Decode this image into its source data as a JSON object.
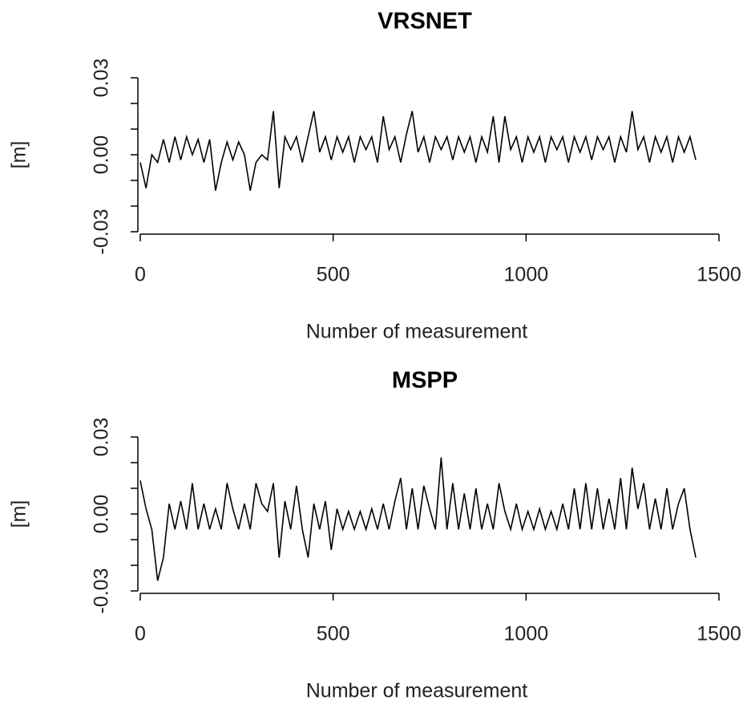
{
  "chart_data": [
    {
      "type": "line",
      "title": "VRSNET",
      "xlabel": "Number of measurement",
      "ylabel": "[m]",
      "color": "#000000",
      "x": [
        0,
        15,
        30,
        45,
        60,
        75,
        90,
        105,
        120,
        135,
        150,
        165,
        180,
        195,
        210,
        225,
        240,
        255,
        270,
        285,
        300,
        315,
        330,
        345,
        360,
        375,
        390,
        405,
        420,
        435,
        450,
        465,
        480,
        495,
        510,
        525,
        540,
        555,
        570,
        585,
        600,
        615,
        630,
        645,
        660,
        675,
        690,
        705,
        720,
        735,
        750,
        765,
        780,
        795,
        810,
        825,
        840,
        855,
        870,
        885,
        900,
        915,
        930,
        945,
        960,
        975,
        990,
        1005,
        1020,
        1035,
        1050,
        1065,
        1080,
        1095,
        1110,
        1125,
        1140,
        1155,
        1170,
        1185,
        1200,
        1215,
        1230,
        1245,
        1260,
        1275,
        1290,
        1305,
        1320,
        1335,
        1350,
        1365,
        1380,
        1395,
        1410,
        1425,
        1440
      ],
      "values": [
        -0.003,
        -0.013,
        0,
        -0.003,
        0.006,
        -0.003,
        0.007,
        -0.002,
        0.007,
        0,
        0.006,
        -0.003,
        0.006,
        -0.014,
        -0.003,
        0.005,
        -0.002,
        0.005,
        0,
        -0.014,
        -0.003,
        0,
        -0.002,
        0.017,
        -0.013,
        0.007,
        0.002,
        0.007,
        -0.003,
        0.007,
        0.017,
        0.001,
        0.007,
        -0.002,
        0.007,
        0.001,
        0.007,
        -0.003,
        0.007,
        0.002,
        0.007,
        -0.003,
        0.015,
        0.002,
        0.007,
        -0.003,
        0.008,
        0.017,
        0.001,
        0.007,
        -0.003,
        0.007,
        0.002,
        0.007,
        -0.002,
        0.007,
        0.001,
        0.007,
        -0.003,
        0.007,
        0.001,
        0.015,
        -0.003,
        0.015,
        0.002,
        0.007,
        -0.003,
        0.007,
        0.001,
        0.007,
        -0.003,
        0.007,
        0.002,
        0.007,
        -0.003,
        0.007,
        0.001,
        0.007,
        -0.002,
        0.007,
        0.002,
        0.007,
        -0.003,
        0.007,
        0.001,
        0.017,
        0.002,
        0.007,
        -0.003,
        0.007,
        0.001,
        0.007,
        -0.003,
        0.007,
        0.001,
        0.007,
        -0.002
      ],
      "xlim": [
        0,
        1500
      ],
      "xticks": [
        0,
        500,
        1000,
        1500
      ],
      "ylim": [
        -0.03,
        0.03
      ],
      "yticks": [
        -0.03,
        {
          "value": 0,
          "label": "0.00"
        },
        0.03
      ],
      "yminor": [
        -0.02,
        -0.01,
        0.01,
        0.02
      ]
    },
    {
      "type": "line",
      "title": "MSPP",
      "xlabel": "Number of measurement",
      "ylabel": "[m]",
      "color": "#000000",
      "x": [
        0,
        15,
        30,
        45,
        60,
        75,
        90,
        105,
        120,
        135,
        150,
        165,
        180,
        195,
        210,
        225,
        240,
        255,
        270,
        285,
        300,
        315,
        330,
        345,
        360,
        375,
        390,
        405,
        420,
        435,
        450,
        465,
        480,
        495,
        510,
        525,
        540,
        555,
        570,
        585,
        600,
        615,
        630,
        645,
        660,
        675,
        690,
        705,
        720,
        735,
        750,
        765,
        780,
        795,
        810,
        825,
        840,
        855,
        870,
        885,
        900,
        915,
        930,
        945,
        960,
        975,
        990,
        1005,
        1020,
        1035,
        1050,
        1065,
        1080,
        1095,
        1110,
        1125,
        1140,
        1155,
        1170,
        1185,
        1200,
        1215,
        1230,
        1245,
        1260,
        1275,
        1290,
        1305,
        1320,
        1335,
        1350,
        1365,
        1380,
        1395,
        1410,
        1425,
        1440
      ],
      "values": [
        0.013,
        0.002,
        -0.006,
        -0.026,
        -0.017,
        0.004,
        -0.006,
        0.005,
        -0.006,
        0.012,
        -0.006,
        0.004,
        -0.006,
        0.002,
        -0.006,
        0.012,
        0.002,
        -0.006,
        0.004,
        -0.006,
        0.012,
        0.004,
        0.001,
        0.012,
        -0.017,
        0.005,
        -0.006,
        0.011,
        -0.006,
        -0.017,
        0.004,
        -0.006,
        0.005,
        -0.014,
        0.002,
        -0.006,
        0.001,
        -0.006,
        0.001,
        -0.006,
        0.002,
        -0.006,
        0.004,
        -0.006,
        0.005,
        0.014,
        -0.006,
        0.01,
        -0.006,
        0.011,
        0.002,
        -0.006,
        0.022,
        -0.006,
        0.012,
        -0.006,
        0.008,
        -0.006,
        0.01,
        -0.006,
        0.004,
        -0.006,
        0.012,
        0.001,
        -0.006,
        0.004,
        -0.006,
        0.001,
        -0.006,
        0.002,
        -0.006,
        0.001,
        -0.006,
        0.004,
        -0.006,
        0.01,
        -0.006,
        0.012,
        -0.006,
        0.01,
        -0.006,
        0.006,
        -0.006,
        0.014,
        -0.006,
        0.018,
        0.002,
        0.012,
        -0.006,
        0.006,
        -0.006,
        0.01,
        -0.006,
        0.004,
        0.01,
        -0.006,
        -0.017
      ],
      "xlim": [
        0,
        1500
      ],
      "xticks": [
        0,
        500,
        1000,
        1500
      ],
      "ylim": [
        -0.03,
        0.03
      ],
      "yticks": [
        -0.03,
        {
          "value": 0,
          "label": "0.00"
        },
        0.03
      ],
      "yminor": [
        -0.02,
        -0.01,
        0.01,
        0.02
      ]
    }
  ]
}
